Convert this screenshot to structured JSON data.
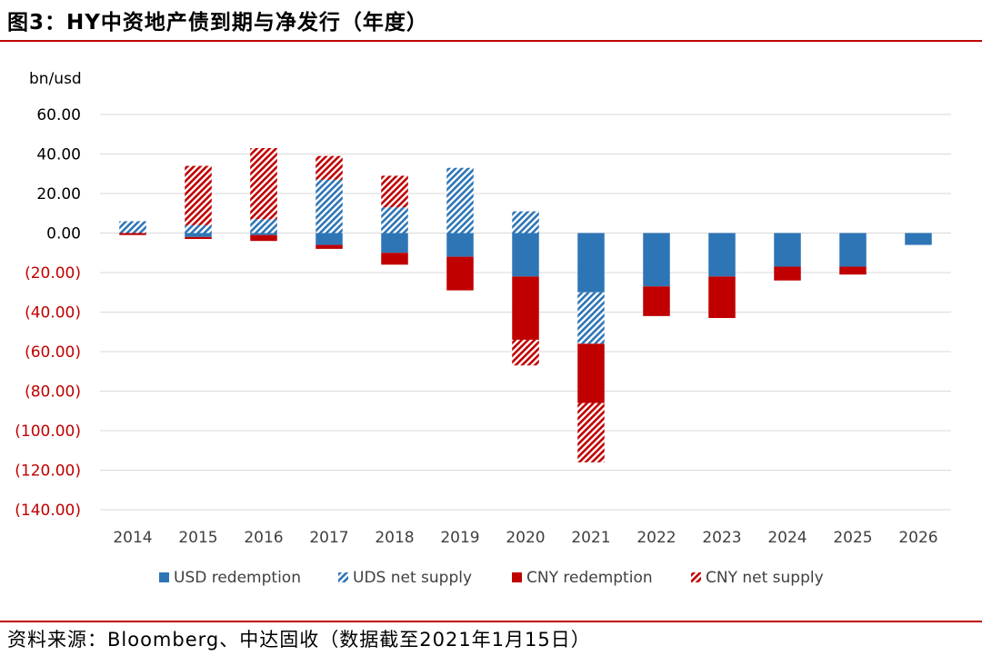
{
  "header": {
    "title": "图3：HY中资地产债到期与净发行（年度）"
  },
  "footer": {
    "source": "资料来源：Bloomberg、中达固收（数据截至2021年1月15日）"
  },
  "chart_data": {
    "type": "bar",
    "stacked": true,
    "unit_label": "bn/usd",
    "categories": [
      "2014",
      "2015",
      "2016",
      "2017",
      "2018",
      "2019",
      "2020",
      "2021",
      "2022",
      "2023",
      "2024",
      "2025",
      "2026"
    ],
    "series": [
      {
        "name": "USD redemption",
        "color": "#2e75b6",
        "pattern": "solid",
        "values": [
          0,
          -2,
          -1,
          -6,
          -10,
          -12,
          -22,
          -30,
          -27,
          -22,
          -17,
          -17,
          -6
        ]
      },
      {
        "name": "UDS net supply",
        "color": "#2e75b6",
        "pattern": "hatch",
        "values": [
          6,
          4,
          7,
          27,
          13,
          33,
          11,
          -26,
          0,
          0,
          0,
          0,
          0
        ]
      },
      {
        "name": "CNY redemption",
        "color": "#c00000",
        "pattern": "solid",
        "values": [
          -1,
          -1,
          -3,
          -2,
          -6,
          -17,
          -32,
          -30,
          -15,
          -21,
          -7,
          -4,
          0
        ]
      },
      {
        "name": "CNY net supply",
        "color": "#c00000",
        "pattern": "hatch",
        "values": [
          0,
          30,
          36,
          12,
          16,
          0,
          -13,
          -30,
          0,
          0,
          0,
          0,
          0
        ]
      }
    ],
    "ylim": [
      -140,
      60
    ],
    "ytick_step": 20,
    "y_ticks": [
      "60.00",
      "40.00",
      "20.00",
      "0.00",
      "(20.00)",
      "(40.00)",
      "(60.00)",
      "(80.00)",
      "(100.00)",
      "(120.00)",
      "(140.00)"
    ],
    "positive_tick_color": "#000000",
    "negative_tick_color": "#c00000",
    "legend_position": "bottom",
    "grid": true
  }
}
